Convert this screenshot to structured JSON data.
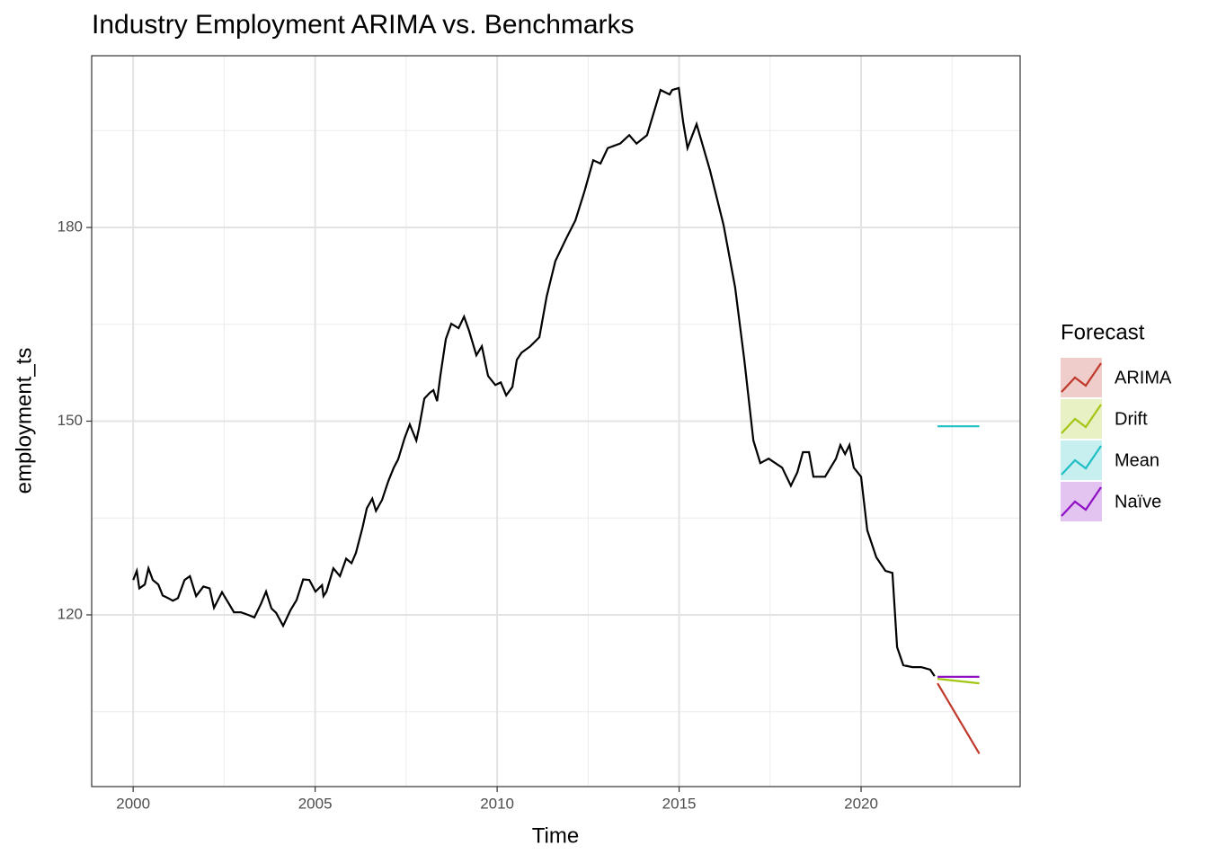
{
  "chart_data": {
    "type": "line",
    "title": "Industry Employment ARIMA vs. Benchmarks",
    "x_label": "Time",
    "y_label": "employment_ts",
    "legend_title": "Forecast",
    "legend_position": "right",
    "grid": true,
    "xlim": [
      1998.86,
      2024.37
    ],
    "ylim": [
      93.4,
      206.6
    ],
    "xticks": [
      2000,
      2005,
      2010,
      2015,
      2020
    ],
    "yticks": [
      120,
      150,
      180
    ],
    "history": {
      "color": "#000000",
      "x": [
        2000.0,
        2000.1,
        2000.17,
        2000.32,
        2000.42,
        2000.54,
        2000.69,
        2000.81,
        2000.96,
        2001.09,
        2001.23,
        2001.41,
        2001.56,
        2001.73,
        2001.93,
        2002.1,
        2002.22,
        2002.44,
        2002.57,
        2002.77,
        2002.96,
        2003.16,
        2003.33,
        2003.51,
        2003.65,
        2003.8,
        2003.93,
        2004.12,
        2004.32,
        2004.49,
        2004.67,
        2004.84,
        2005.01,
        2005.19,
        2005.23,
        2005.31,
        2005.5,
        2005.68,
        2005.85,
        2006.0,
        2006.12,
        2006.3,
        2006.42,
        2006.57,
        2006.67,
        2006.84,
        2007.01,
        2007.16,
        2007.28,
        2007.46,
        2007.6,
        2007.78,
        2007.85,
        2008.0,
        2008.15,
        2008.25,
        2008.35,
        2008.44,
        2008.59,
        2008.74,
        2008.94,
        2009.09,
        2009.23,
        2009.43,
        2009.58,
        2009.75,
        2009.95,
        2010.1,
        2010.25,
        2010.42,
        2010.54,
        2010.67,
        2010.91,
        2011.16,
        2011.36,
        2011.6,
        2011.9,
        2012.15,
        2012.4,
        2012.64,
        2012.84,
        2013.04,
        2013.38,
        2013.63,
        2013.83,
        2014.12,
        2014.49,
        2014.74,
        2014.81,
        2014.99,
        2015.11,
        2015.23,
        2015.48,
        2015.85,
        2016.22,
        2016.54,
        2016.79,
        2017.04,
        2017.23,
        2017.46,
        2017.83,
        2018.07,
        2018.25,
        2018.4,
        2018.57,
        2018.69,
        2019.01,
        2019.31,
        2019.43,
        2019.56,
        2019.68,
        2019.8,
        2020.0,
        2020.17,
        2020.42,
        2020.67,
        2020.86,
        2020.99,
        2021.16,
        2021.41,
        2021.65,
        2021.9,
        2022.02
      ],
      "values": [
        125.4,
        126.8,
        124.1,
        124.7,
        127.2,
        125.4,
        124.7,
        123.0,
        122.6,
        122.2,
        122.6,
        125.4,
        126.0,
        122.9,
        124.4,
        124.1,
        121.1,
        123.5,
        122.3,
        120.4,
        120.4,
        120.0,
        119.6,
        121.7,
        123.6,
        121.0,
        120.3,
        118.3,
        120.7,
        122.3,
        125.5,
        125.4,
        123.6,
        124.6,
        122.9,
        123.6,
        127.2,
        126.0,
        128.7,
        128.0,
        129.6,
        133.5,
        136.5,
        138.0,
        136.1,
        137.8,
        140.7,
        142.8,
        144.1,
        147.4,
        149.5,
        147.0,
        148.8,
        153.5,
        154.4,
        154.8,
        153.1,
        157.0,
        162.7,
        165.1,
        164.4,
        166.2,
        164.0,
        160.2,
        161.6,
        157.0,
        155.6,
        156.0,
        154.0,
        155.3,
        159.5,
        160.6,
        161.6,
        163.0,
        169.3,
        174.8,
        178.3,
        181.1,
        185.6,
        190.4,
        189.9,
        192.3,
        193.0,
        194.3,
        193.0,
        194.3,
        201.3,
        200.6,
        201.3,
        201.6,
        196.4,
        192.3,
        196.0,
        188.8,
        180.4,
        170.7,
        159.5,
        147.0,
        143.5,
        144.2,
        142.8,
        140.0,
        142.1,
        145.2,
        145.2,
        141.4,
        141.4,
        144.2,
        146.3,
        144.9,
        146.3,
        142.8,
        141.4,
        133.1,
        128.9,
        126.8,
        126.5,
        115.0,
        112.2,
        111.9,
        111.9,
        111.5,
        110.5
      ]
    },
    "series": [
      {
        "name": "ARIMA",
        "color": "#c0392b",
        "x": [
          2022.1,
          2023.25
        ],
        "values": [
          109.4,
          98.5
        ]
      },
      {
        "name": "Drift",
        "color": "#a3c614",
        "x": [
          2022.1,
          2023.25
        ],
        "values": [
          110.1,
          109.4
        ]
      },
      {
        "name": "Mean",
        "color": "#1fbfc4",
        "x": [
          2022.1,
          2023.25
        ],
        "values": [
          149.2,
          149.2
        ]
      },
      {
        "name": "Naïve",
        "color": "#8e0fc4",
        "x": [
          2022.1,
          2023.25
        ],
        "values": [
          110.4,
          110.4
        ]
      }
    ]
  }
}
